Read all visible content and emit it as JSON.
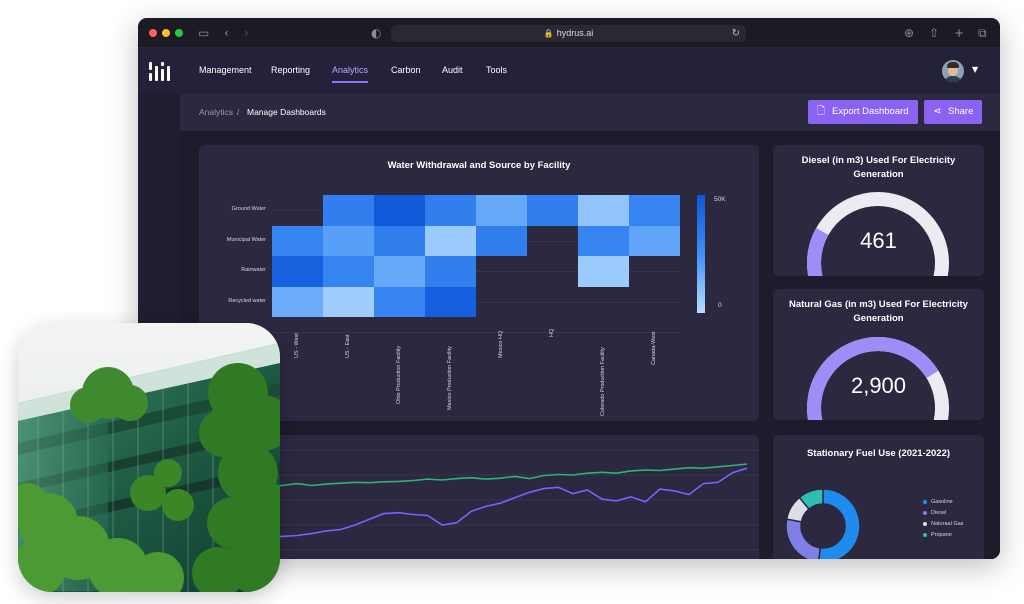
{
  "browser": {
    "url": "hydrus.ai",
    "traffic_lights": [
      "#ff5f57",
      "#febc2e",
      "#28c840"
    ]
  },
  "topnav": {
    "items": [
      {
        "label": "Management"
      },
      {
        "label": "Reporting"
      },
      {
        "label": "Analytics",
        "active": true
      },
      {
        "label": "Carbon"
      },
      {
        "label": "Audit"
      },
      {
        "label": "Tools"
      }
    ]
  },
  "breadcrumb": {
    "parent": "Analytics",
    "separator": "/",
    "current": "Manage Dashboards"
  },
  "actions": {
    "export_label": "Export Dashboard",
    "share_label": "Share",
    "accent": "#8a63f5"
  },
  "heatmap": {
    "title": "Water Withdrawal and Source by Facility",
    "rows": [
      "Ground Water",
      "Municipal Water",
      "Rainwater",
      "Recycled water"
    ],
    "columns": [
      "US - West",
      "US - East",
      "Ohio Production Facility",
      "Mexico Production Facility",
      "Mexico HQ",
      "HQ",
      "Colorado Production Facility",
      "Canada-West"
    ],
    "scale_max_label": "50K",
    "scale_min_label": "0"
  },
  "chart_data": [
    {
      "type": "heatmap",
      "title": "Water Withdrawal and Source by Facility",
      "x": [
        "US - West",
        "US - East",
        "Ohio Production Facility",
        "Mexico Production Facility",
        "Mexico HQ",
        "HQ",
        "Colorado Production Facility",
        "Canada-West"
      ],
      "y": [
        "Ground Water",
        "Municipal Water",
        "Rainwater",
        "Recycled water"
      ],
      "values": [
        [
          null,
          32000,
          48000,
          32000,
          17000,
          32000,
          8000,
          30000
        ],
        [
          30000,
          20000,
          32000,
          6000,
          32000,
          null,
          30000,
          18000
        ],
        [
          45000,
          30000,
          17000,
          32000,
          null,
          null,
          6000,
          null
        ],
        [
          16000,
          5000,
          30000,
          46000,
          null,
          null,
          null,
          null
        ]
      ],
      "zlim": [
        0,
        50000
      ]
    },
    {
      "type": "line",
      "series": [
        {
          "values": [
            24,
            24.3,
            24.1,
            24.2,
            24.6,
            24.2,
            24.5,
            24.7,
            24.9,
            24.8,
            25,
            25.1,
            25.3,
            25.6,
            25.4,
            25.7,
            25.9,
            25.6,
            25.8,
            26.2,
            25.7,
            26.4,
            26.6,
            26.5,
            26.9,
            27.1,
            26.9,
            27.4,
            27.6,
            27.5,
            27.8,
            28.1,
            28,
            28.3,
            28.6,
            28.9
          ]
        },
        {
          "values": [
            13.5,
            12.8,
            12.9,
            13,
            13.2,
            13.6,
            14.2,
            14.5,
            15.5,
            16.8,
            18,
            18.2,
            17.8,
            17.6,
            15.5,
            16,
            18.5,
            19.6,
            20.3,
            21.5,
            22.7,
            23.5,
            23.8,
            22.4,
            23.2,
            21.2,
            20.8,
            21.7,
            20.6,
            23.4,
            23,
            22.2,
            24.6,
            24.9,
            27,
            28
          ]
        }
      ]
    },
    {
      "type": "pie",
      "title": "Stationary Fuel Use (2021-2022)",
      "labels": [
        "Gasoline",
        "Diesel",
        "Naturaal Gas",
        "Propane"
      ],
      "values": [
        52,
        26,
        11,
        11
      ],
      "colors": [
        "#1f8bed",
        "#7f7fe8",
        "#dcdfe6",
        "#2fbfb0"
      ]
    }
  ],
  "gauges": [
    {
      "title": "Diesel (in m3) Used For Electricity Generation",
      "value": "461",
      "fraction": 0.22
    },
    {
      "title": "Natural Gas (in m3) Used For Electricity Generation",
      "value": "2,900",
      "fraction": 0.77
    }
  ],
  "donut": {
    "title": "Stationary Fuel Use (2021-2022)",
    "legend": [
      "Gasoline",
      "Diesel",
      "Naturaal Gas",
      "Propane"
    ]
  },
  "colors": {
    "accent": "#8f72ff",
    "line_green": "#2eb27a",
    "line_purple": "#7b61ff",
    "card": "#2b2840"
  }
}
